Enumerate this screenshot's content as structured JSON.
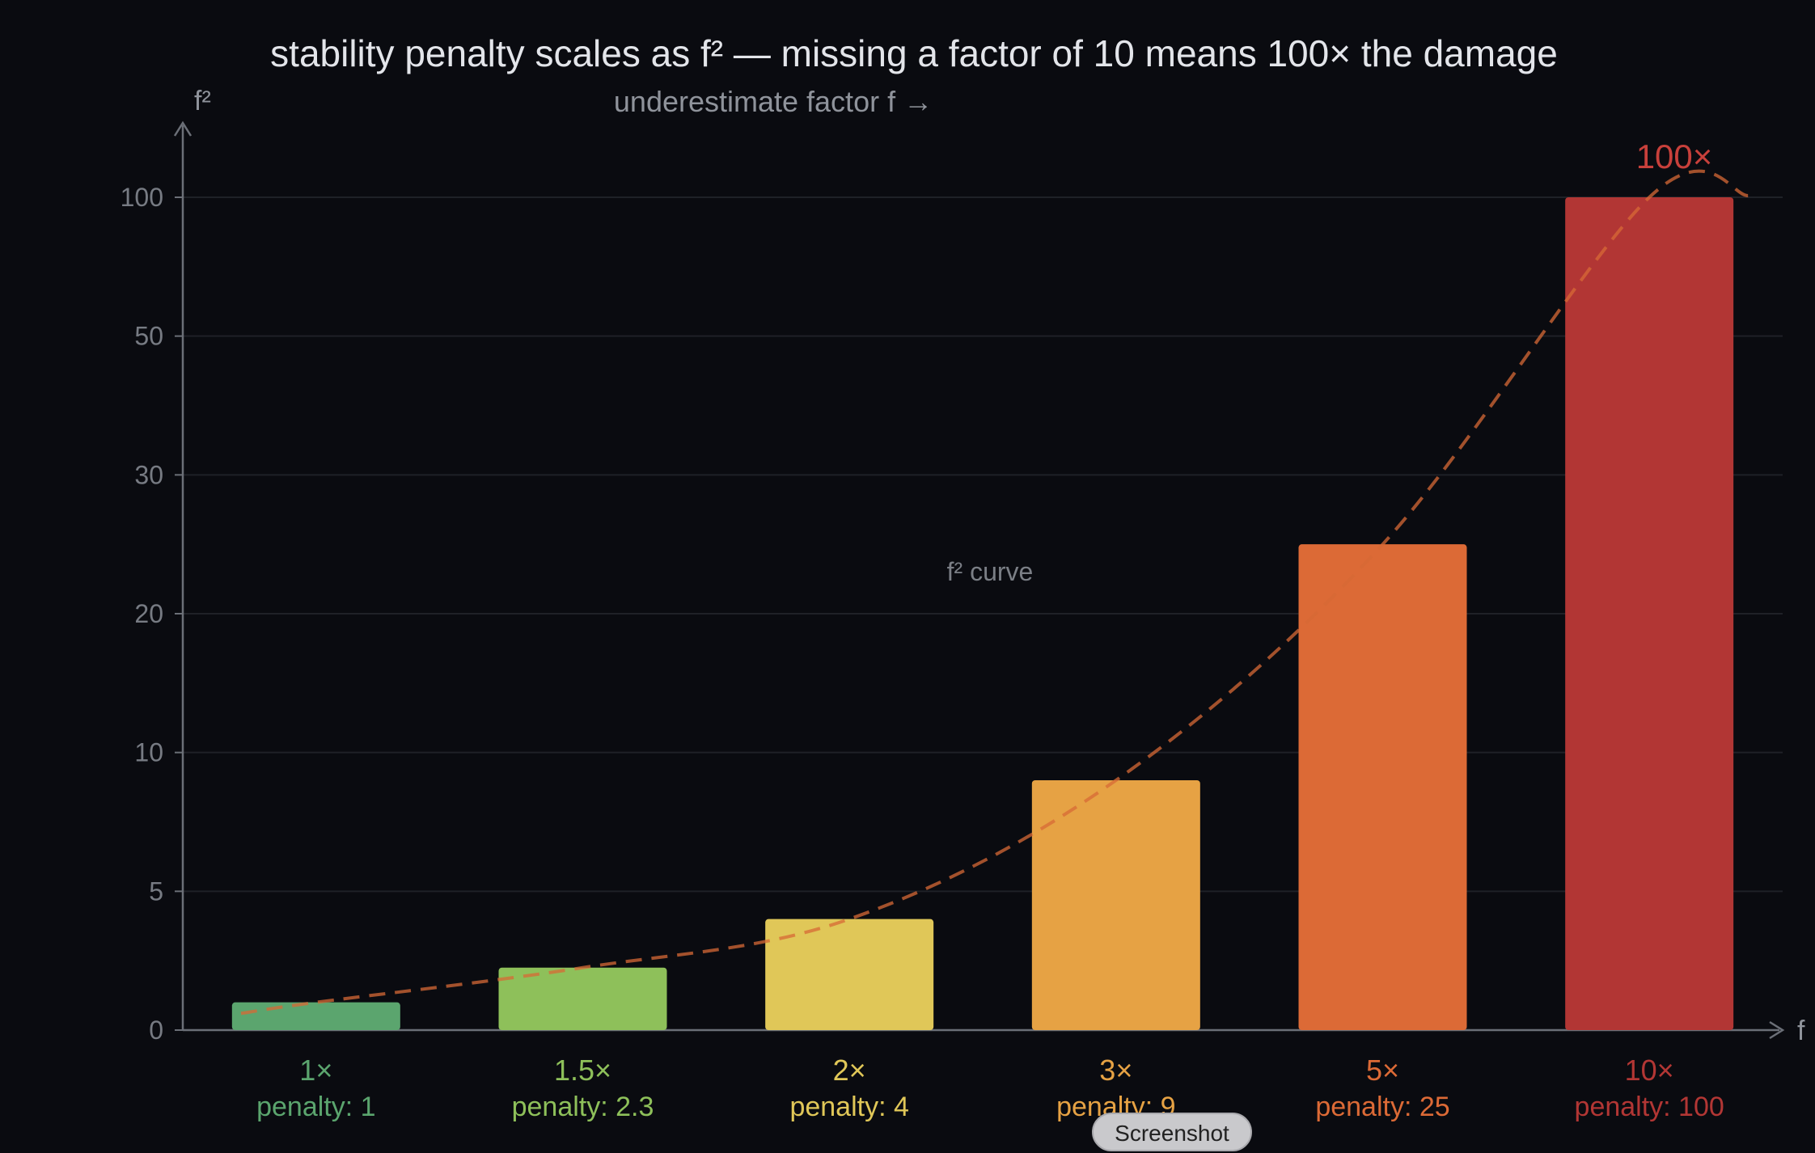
{
  "chart_data": {
    "type": "bar",
    "title": "stability penalty scales as f² — missing a factor of 10 means 100× the damage",
    "subtitle": "underestimate factor f →",
    "ylabel": "f²",
    "xlabel": "f",
    "y_ticks": [
      0,
      5,
      10,
      20,
      30,
      50,
      100
    ],
    "y_tick_labels": [
      "0",
      "5",
      "10",
      "20",
      "30",
      "50",
      "100"
    ],
    "categories": [
      "1×",
      "1.5×",
      "2×",
      "3×",
      "5×",
      "10×"
    ],
    "f_values": [
      1,
      1.5,
      2,
      3,
      5,
      10
    ],
    "values": [
      1,
      2.25,
      4,
      9,
      25,
      100
    ],
    "penalty_labels": [
      "penalty: 1",
      "penalty: 2.3",
      "penalty: 4",
      "penalty: 9",
      "penalty: 25",
      "penalty: 100"
    ],
    "colors": [
      "#5ba56e",
      "#8ec05a",
      "#e0c758",
      "#e6a244",
      "#dc6a36",
      "#b23634"
    ],
    "curve": {
      "label": "f² curve",
      "color": "#d76a36",
      "style": "dashed"
    },
    "peak_annotation": "100×",
    "peak_color": "#c8403b",
    "grid": true
  },
  "badge": {
    "label": "Screenshot"
  }
}
